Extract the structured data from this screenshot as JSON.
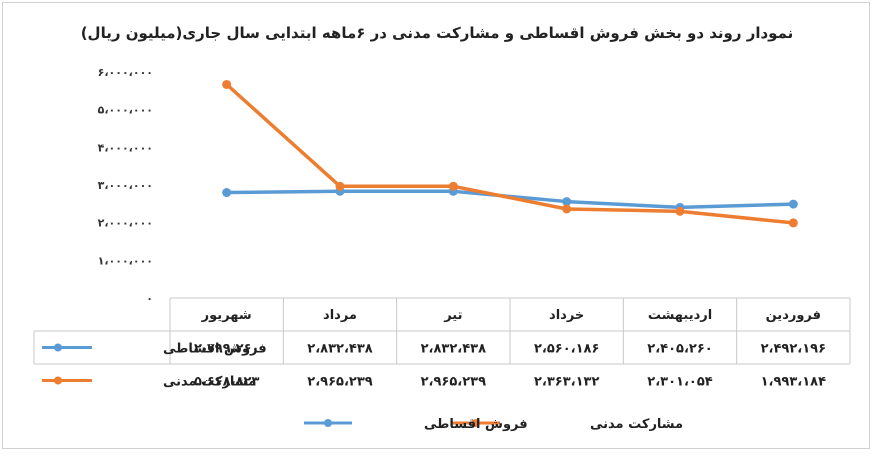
{
  "chart_data": {
    "type": "line",
    "title": "نمودار روند دو بخش فروش اقساطی و مشارکت مدنی در ۶ماهه ابتدایی سال جاری(میلیون ریال)",
    "categories": [
      "فروردین",
      "اردیبهشت",
      "خرداد",
      "تیر",
      "مرداد",
      "شهریور"
    ],
    "ylim": [
      0,
      6000000
    ],
    "y_ticks": [
      0,
      1000000,
      2000000,
      3000000,
      4000000,
      5000000,
      6000000
    ],
    "y_tick_labels": [
      "۰",
      "۱،۰۰۰،۰۰۰",
      "۲،۰۰۰،۰۰۰",
      "۳،۰۰۰،۰۰۰",
      "۴،۰۰۰،۰۰۰",
      "۵،۰۰۰،۰۰۰",
      "۶،۰۰۰،۰۰۰"
    ],
    "grid": false,
    "legend_position": "bottom",
    "series": [
      {
        "name": "فروش اقساطی",
        "color": "#5B9BD5",
        "values": [
          2492196,
          2405260,
          2560186,
          2832438,
          2832438,
          2799260
        ],
        "labels": [
          "۲،۴۹۲،۱۹۶",
          "۲،۴۰۵،۲۶۰",
          "۲،۵۶۰،۱۸۶",
          "۲،۸۳۲،۴۳۸",
          "۲،۸۳۲،۴۳۸",
          "۲،۷۹۹،۲۶۰"
        ]
      },
      {
        "name": "مشارکت مدنی",
        "color": "#ED7D31",
        "values": [
          1993184,
          2301054,
          2363132,
          2965239,
          2965239,
          5668823
        ],
        "labels": [
          "۱،۹۹۳،۱۸۴",
          "۲،۳۰۱،۰۵۴",
          "۲،۳۶۳،۱۳۲",
          "۲،۹۶۵،۲۳۹",
          "۲،۹۶۵،۲۳۹",
          "۵،۶۶۸،۸۲۳"
        ]
      }
    ]
  }
}
